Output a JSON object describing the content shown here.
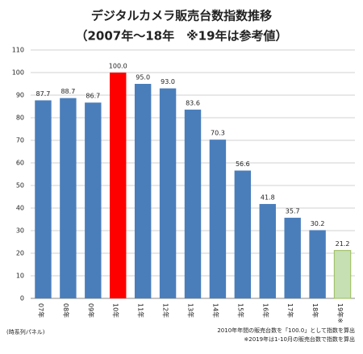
{
  "chart_data": {
    "type": "bar",
    "title": "デジタルカメラ販売台数指数推移",
    "subtitle": "（2007年～18年　※19年は参考値）",
    "categories": [
      "07年",
      "08年",
      "09年",
      "10年",
      "11年",
      "12年",
      "13年",
      "14年",
      "15年",
      "16年",
      "17年",
      "18年",
      "19年※"
    ],
    "values": [
      87.7,
      88.7,
      86.7,
      100.0,
      95.0,
      93.0,
      83.6,
      70.3,
      56.6,
      41.8,
      35.7,
      30.2,
      21.2
    ],
    "value_labels": [
      "87.7",
      "88.7",
      "86.7",
      "100.0",
      "95.0",
      "93.0",
      "83.6",
      "70.3",
      "56.6",
      "41.8",
      "35.7",
      "30.2",
      "21.2"
    ],
    "colors": [
      "#4a7ebb",
      "#4a7ebb",
      "#4a7ebb",
      "#ff0000",
      "#4a7ebb",
      "#4a7ebb",
      "#4a7ebb",
      "#4a7ebb",
      "#4a7ebb",
      "#4a7ebb",
      "#4a7ebb",
      "#4a7ebb",
      "#c6e0b4"
    ],
    "ylim": [
      0,
      110
    ],
    "yticks": [
      0,
      10,
      20,
      30,
      40,
      50,
      60,
      70,
      80,
      90,
      100,
      110
    ],
    "grid": true,
    "source": "(時系列パネル)",
    "notes": [
      "2010年年間の販売台数を「100.0」として指数を算出",
      "※2019年は1-10月の販売台数で指数を算出"
    ]
  }
}
